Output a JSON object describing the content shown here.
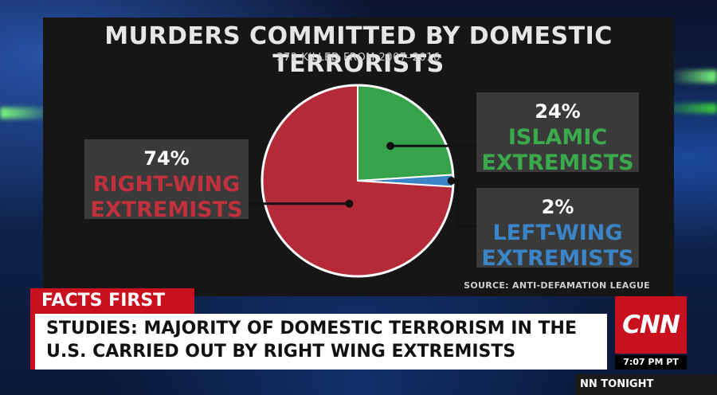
{
  "chart_data": {
    "type": "pie",
    "title": "MURDERS COMMITTED BY DOMESTIC TERRORISTS",
    "subtitle": "372 KILLED FROM 2007–2016",
    "source": "SOURCE: ANTI-DEFAMATION LEAGUE",
    "slices": [
      {
        "name_line1": "RIGHT-WING",
        "name_line2": "EXTREMISTS",
        "value": 74,
        "label": "74%",
        "color": "#b52a38"
      },
      {
        "name_line1": "ISLAMIC",
        "name_line2": "EXTREMISTS",
        "value": 24,
        "label": "24%",
        "color": "#36a34a"
      },
      {
        "name_line1": "LEFT-WING",
        "name_line2": "EXTREMISTS",
        "value": 2,
        "label": "2%",
        "color": "#3a84c8"
      }
    ]
  },
  "lower_third": {
    "tag": "FACTS FIRST",
    "headline_line1": "STUDIES: MAJORITY OF DOMESTIC TERRORISM IN THE",
    "headline_line2": "U.S. CARRIED OUT BY RIGHT WING EXTREMISTS",
    "network_logo": "CNN",
    "time": "7:07 PM PT",
    "show": "NN TONIGHT"
  },
  "colors": {
    "accent_red": "#c8101e",
    "panel_bg": "#161616",
    "label_box_bg": "#3a3a3a"
  }
}
